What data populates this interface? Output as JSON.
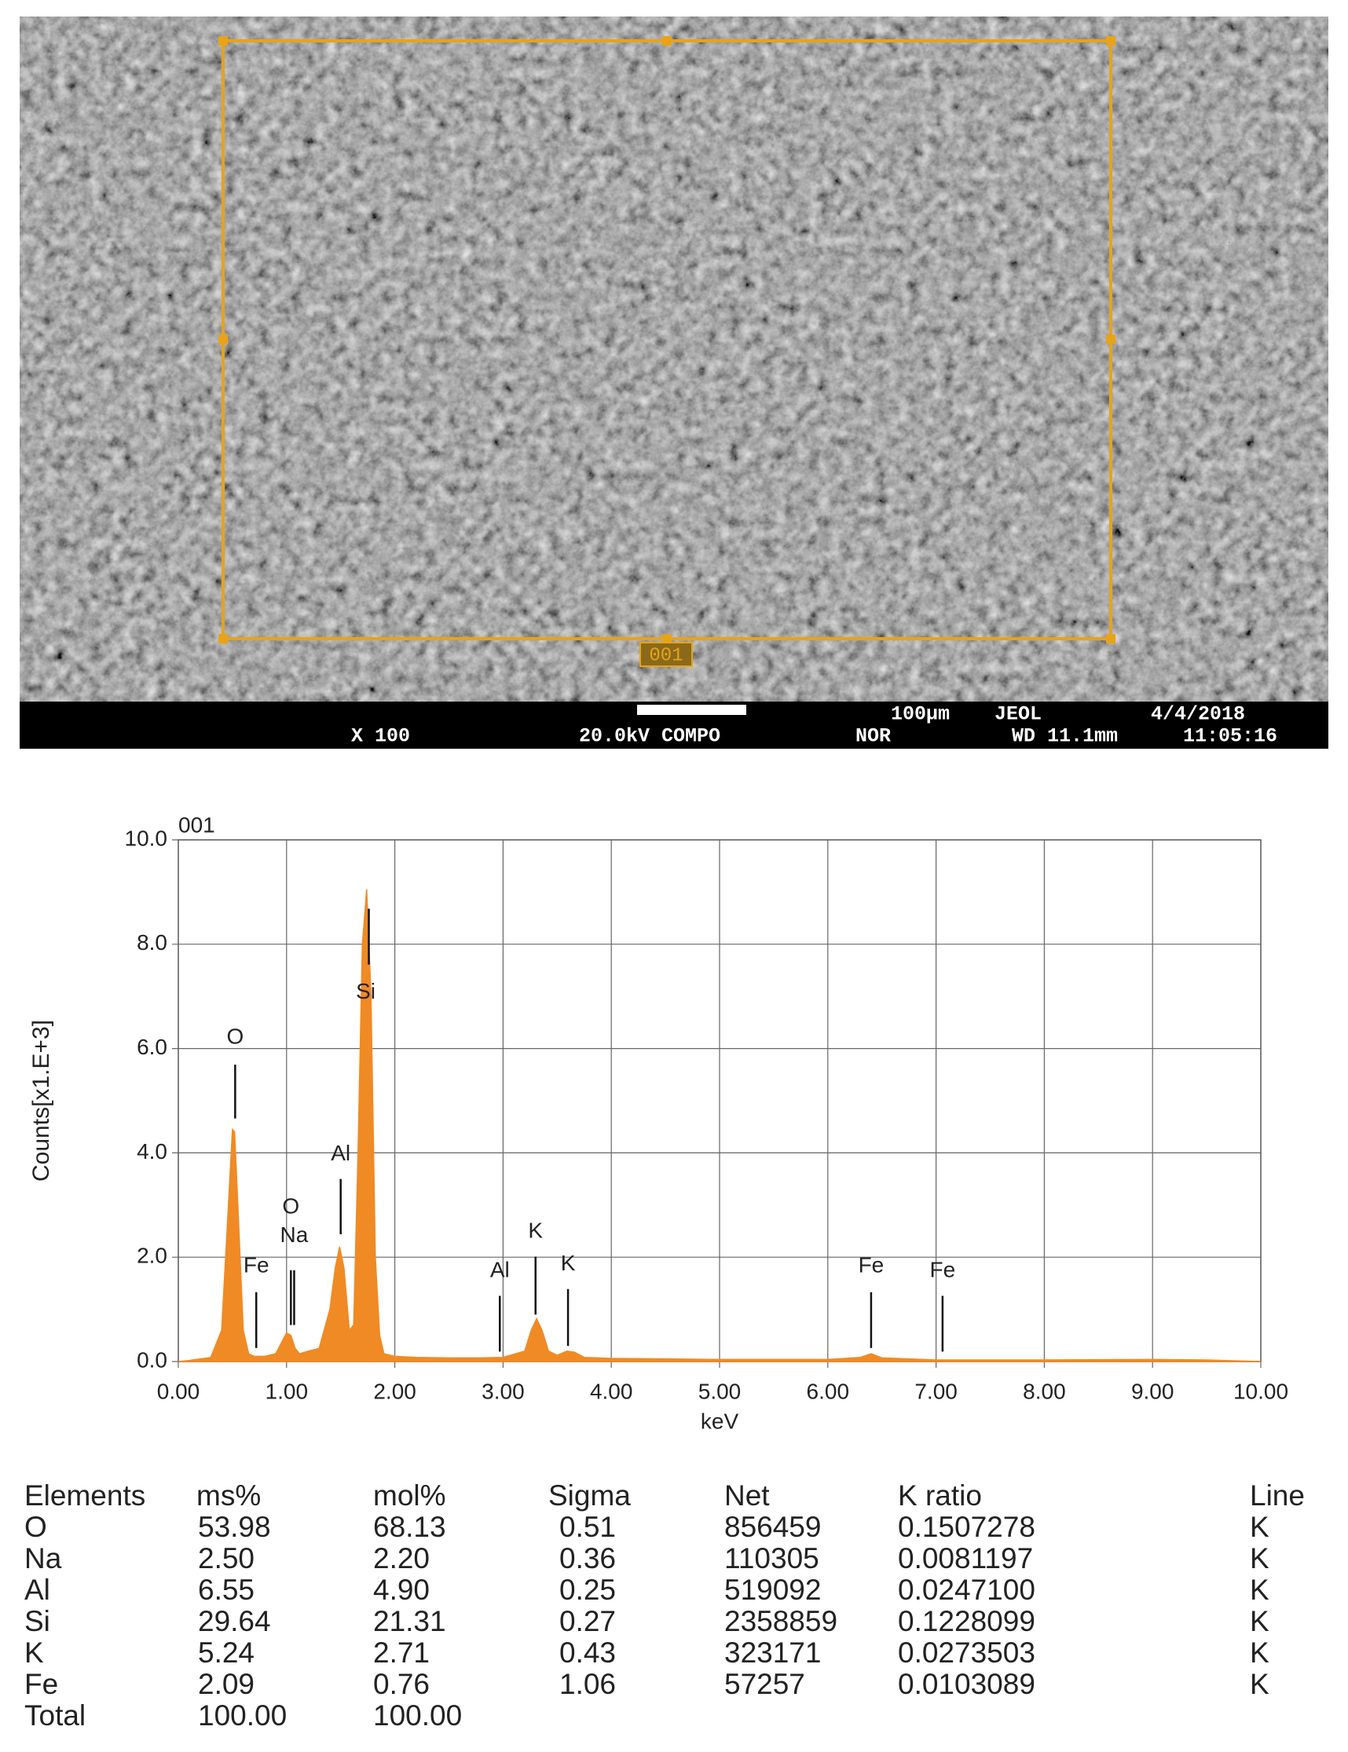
{
  "sem_image": {
    "overlay_label": "001",
    "info_bar": {
      "magnification": "X 100",
      "voltage": "20.0kV COMPO",
      "mode": "NOR",
      "scale": "100µm",
      "maker": "JEOL",
      "date": "4/4/2018",
      "working_distance": "WD 11.1mm",
      "time": "11:05:16"
    }
  },
  "chart_data": {
    "type": "area",
    "title": "001",
    "x_label": "keV",
    "y_label": "Counts[x1.E+3]",
    "color": "#f08a24",
    "grid": true,
    "xlim": [
      0,
      10
    ],
    "ylim": [
      0,
      10
    ],
    "xticks": [
      {
        "value": 0,
        "label": "0.00"
      },
      {
        "value": 1,
        "label": "1.00"
      },
      {
        "value": 2,
        "label": "2.00"
      },
      {
        "value": 3,
        "label": "3.00"
      },
      {
        "value": 4,
        "label": "4.00"
      },
      {
        "value": 5,
        "label": "5.00"
      },
      {
        "value": 6,
        "label": "6.00"
      },
      {
        "value": 7,
        "label": "7.00"
      },
      {
        "value": 8,
        "label": "8.00"
      },
      {
        "value": 9,
        "label": "9.00"
      },
      {
        "value": 10,
        "label": "10.00"
      }
    ],
    "yticks": [
      {
        "value": 0,
        "label": "0.0"
      },
      {
        "value": 2,
        "label": "2.0"
      },
      {
        "value": 4,
        "label": "4.0"
      },
      {
        "value": 6,
        "label": "6.0"
      },
      {
        "value": 8,
        "label": "8.0"
      },
      {
        "value": 10,
        "label": "10.0"
      }
    ],
    "x": [
      0,
      0.1,
      0.2,
      0.3,
      0.4,
      0.45,
      0.5,
      0.52,
      0.55,
      0.6,
      0.65,
      0.7,
      0.8,
      0.9,
      0.95,
      1.0,
      1.04,
      1.08,
      1.12,
      1.2,
      1.3,
      1.4,
      1.45,
      1.49,
      1.53,
      1.58,
      1.62,
      1.66,
      1.7,
      1.74,
      1.78,
      1.82,
      1.86,
      1.9,
      2.0,
      2.2,
      2.5,
      2.8,
      3.0,
      3.2,
      3.26,
      3.31,
      3.36,
      3.42,
      3.5,
      3.59,
      3.66,
      3.75,
      4.0,
      4.5,
      5.0,
      5.5,
      6.0,
      6.3,
      6.4,
      6.5,
      7.0,
      8.0,
      9.0,
      9.5,
      10.0
    ],
    "values": [
      0,
      0.02,
      0.05,
      0.08,
      0.6,
      2.5,
      4.45,
      4.4,
      3.0,
      0.6,
      0.15,
      0.1,
      0.1,
      0.15,
      0.35,
      0.55,
      0.5,
      0.25,
      0.15,
      0.2,
      0.25,
      1.0,
      1.8,
      2.2,
      1.8,
      0.6,
      0.7,
      4.0,
      8.0,
      9.05,
      7.0,
      2.0,
      0.5,
      0.15,
      0.1,
      0.08,
      0.07,
      0.07,
      0.08,
      0.2,
      0.6,
      0.82,
      0.6,
      0.2,
      0.12,
      0.2,
      0.18,
      0.08,
      0.06,
      0.05,
      0.04,
      0.04,
      0.04,
      0.08,
      0.15,
      0.07,
      0.03,
      0.03,
      0.04,
      0.03,
      0.0
    ],
    "peaks": [
      {
        "label": "O",
        "x": 0.525
      },
      {
        "label": "Fe",
        "x": 0.72
      },
      {
        "label": "O",
        "x": 1.04
      },
      {
        "label": "Na",
        "x": 1.07
      },
      {
        "label": "Al",
        "x": 1.5
      },
      {
        "label": "Si",
        "x": 1.76
      },
      {
        "label": "Al",
        "x": 2.97
      },
      {
        "label": "K",
        "x": 3.3
      },
      {
        "label": "K",
        "x": 3.6
      },
      {
        "label": "Fe",
        "x": 6.4
      },
      {
        "label": "Fe",
        "x": 7.06
      }
    ]
  },
  "table": {
    "columns": [
      "Elements",
      "ms%",
      "mol%",
      "Sigma",
      "Net",
      "K ratio",
      "Line"
    ],
    "rows": [
      [
        "O",
        "53.98",
        "68.13",
        "0.51",
        "856459",
        "0.1507278",
        "K"
      ],
      [
        "Na",
        "2.50",
        "2.20",
        "0.36",
        "110305",
        "0.0081197",
        "K"
      ],
      [
        "Al",
        "6.55",
        "4.90",
        "0.25",
        "519092",
        "0.0247100",
        "K"
      ],
      [
        "Si",
        "29.64",
        "21.31",
        "0.27",
        "2358859",
        "0.1228099",
        "K"
      ],
      [
        "K",
        "5.24",
        "2.71",
        "0.43",
        "323171",
        "0.0273503",
        "K"
      ],
      [
        "Fe",
        "2.09",
        "0.76",
        "1.06",
        "57257",
        "0.0103089",
        "K"
      ],
      [
        "Total",
        "100.00",
        "100.00"
      ]
    ]
  }
}
